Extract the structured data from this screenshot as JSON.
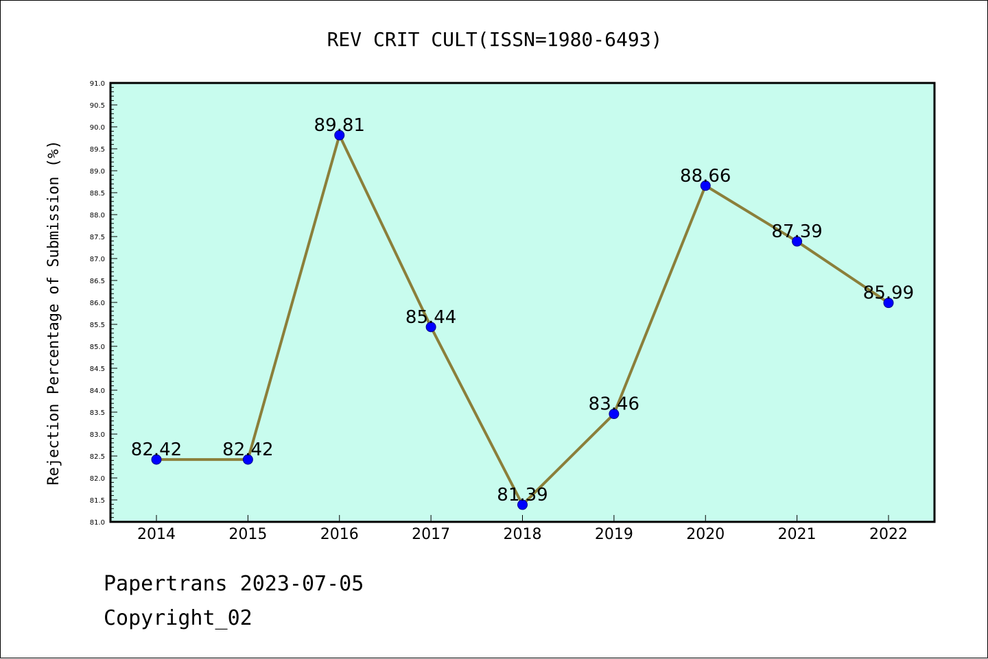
{
  "colors": {
    "plot_background": "#c8fcee",
    "line": "#8b7f3a",
    "marker": "#0000ff",
    "marker_edge": "#00008b",
    "axis": "#000000"
  },
  "chart_data": {
    "type": "line",
    "title": "REV CRIT CULT(ISSN=1980-6493)",
    "xlabel": "",
    "ylabel": "Rejection Percentage of Submission (%)",
    "categories": [
      "2014",
      "2015",
      "2016",
      "2017",
      "2018",
      "2019",
      "2020",
      "2021",
      "2022"
    ],
    "series": [
      {
        "values": [
          82.42,
          82.42,
          89.81,
          85.44,
          81.39,
          83.46,
          88.66,
          87.39,
          85.99
        ],
        "data_labels": [
          "82.42",
          "82.42",
          "89.81",
          "85.44",
          "81.39",
          "83.46",
          "88.66",
          "87.39",
          "85.99"
        ]
      }
    ],
    "ylim": [
      81.0,
      91.0
    ],
    "yticks": [
      "81.0",
      "81.5",
      "82.0",
      "82.5",
      "83.0",
      "83.5",
      "84.0",
      "84.5",
      "85.0",
      "85.5",
      "86.0",
      "86.5",
      "87.0",
      "87.5",
      "88.0",
      "88.5",
      "89.0",
      "89.5",
      "90.0",
      "90.5",
      "91.0"
    ],
    "grid": false,
    "legend": "none"
  },
  "footer": {
    "line1": "Papertrans 2023-07-05",
    "line2": "Copyright_02"
  }
}
